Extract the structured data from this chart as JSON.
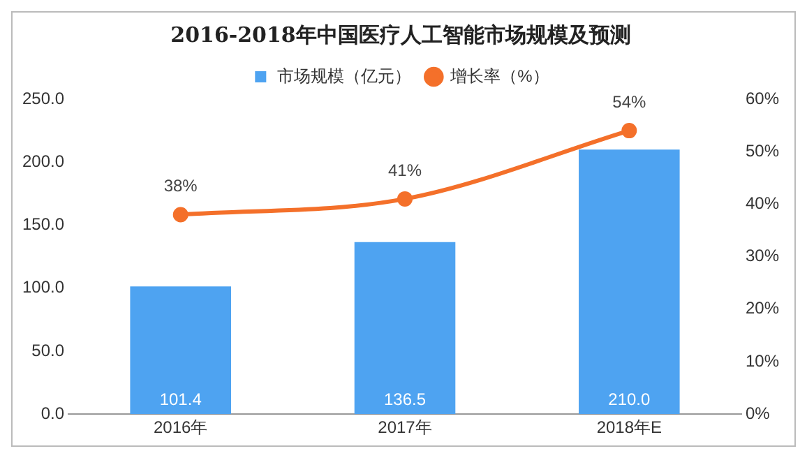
{
  "chart_data": {
    "type": "bar",
    "title": "2016-2018年中国医疗人工智能市场规模及预测",
    "categories": [
      "2016年",
      "2017年",
      "2018年E"
    ],
    "series": [
      {
        "name": "市场规模（亿元）",
        "color": "#4ea3f1",
        "values": [
          101.4,
          136.5,
          210.0
        ],
        "value_labels": [
          "101.4",
          "136.5",
          "210.0"
        ]
      },
      {
        "name": "增长率（%）",
        "type": "line",
        "axis": "y2",
        "color": "#f4702a",
        "values": [
          38,
          41,
          54
        ],
        "value_labels": [
          "38%",
          "41%",
          "54%"
        ],
        "marker": "circle"
      }
    ],
    "ylim": [
      0,
      250
    ],
    "yticks": [
      {
        "value": 0,
        "label": "0.0"
      },
      {
        "value": 50,
        "label": "50.0"
      },
      {
        "value": 100,
        "label": "100.0"
      },
      {
        "value": 150,
        "label": "150.0"
      },
      {
        "value": 200,
        "label": "200.0"
      },
      {
        "value": 250,
        "label": "250.0"
      }
    ],
    "y2lim": [
      0,
      60
    ],
    "y2ticks": [
      {
        "value": 0,
        "label": "0%"
      },
      {
        "value": 10,
        "label": "10%"
      },
      {
        "value": 20,
        "label": "20%"
      },
      {
        "value": 30,
        "label": "30%"
      },
      {
        "value": 40,
        "label": "40%"
      },
      {
        "value": 50,
        "label": "50%"
      },
      {
        "value": 60,
        "label": "60%"
      }
    ],
    "legend": "top",
    "grid": false
  }
}
